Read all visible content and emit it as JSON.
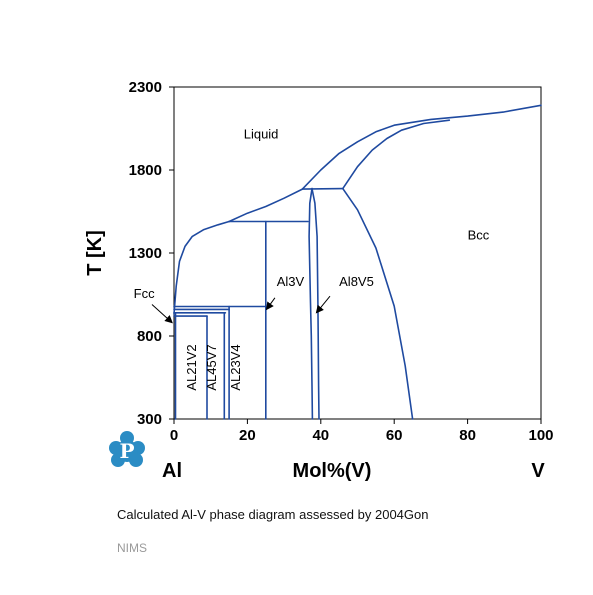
{
  "chart_data": {
    "type": "line",
    "title": "",
    "xlabel": "Mol%(V)",
    "ylabel": "T [K]",
    "x_left_label": "Al",
    "x_right_label": "V",
    "xlim": [
      0,
      100
    ],
    "ylim": [
      300,
      2300
    ],
    "xticks": [
      "0",
      "20",
      "40",
      "60",
      "80",
      "100"
    ],
    "yticks": [
      "300",
      "800",
      "1300",
      "1800",
      "2300"
    ],
    "line_color": "#1f4aa0",
    "grid": false,
    "series": [
      {
        "points": [
          [
            0,
            933
          ],
          [
            0.6,
            1100
          ],
          [
            1.5,
            1250
          ],
          [
            3,
            1340
          ],
          [
            5,
            1400
          ],
          [
            8,
            1440
          ],
          [
            12,
            1470
          ],
          [
            15,
            1490
          ]
        ]
      },
      {
        "points": [
          [
            15,
            1490
          ],
          [
            20,
            1540
          ],
          [
            25,
            1580
          ],
          [
            30,
            1630
          ],
          [
            35,
            1685
          ]
        ]
      },
      {
        "points": [
          [
            35,
            1685
          ],
          [
            40,
            1800
          ],
          [
            45,
            1900
          ],
          [
            50,
            1970
          ],
          [
            55,
            2030
          ],
          [
            60,
            2070
          ],
          [
            70,
            2105
          ],
          [
            80,
            2125
          ],
          [
            90,
            2150
          ],
          [
            100,
            2190
          ]
        ]
      },
      {
        "points": [
          [
            46,
            1688
          ],
          [
            50,
            1820
          ],
          [
            54,
            1920
          ],
          [
            58,
            1990
          ],
          [
            62,
            2040
          ],
          [
            68,
            2080
          ],
          [
            75,
            2100
          ]
        ]
      },
      {
        "points": [
          [
            46,
            1688
          ],
          [
            50,
            1560
          ],
          [
            55,
            1330
          ],
          [
            60,
            980
          ],
          [
            63,
            620
          ],
          [
            65,
            300
          ]
        ]
      },
      {
        "points": [
          [
            35,
            1685
          ],
          [
            46,
            1688
          ]
        ]
      },
      {
        "points": [
          [
            15,
            1490
          ],
          [
            36.5,
            1490
          ]
        ]
      },
      {
        "points": [
          [
            37.6,
            1688
          ],
          [
            37,
            1600
          ],
          [
            36.8,
            1400
          ],
          [
            37,
            1200
          ],
          [
            37.2,
            1000
          ],
          [
            37.4,
            800
          ],
          [
            37.6,
            500
          ],
          [
            37.7,
            300
          ]
        ]
      },
      {
        "points": [
          [
            37.6,
            1688
          ],
          [
            38.4,
            1600
          ],
          [
            39,
            1400
          ],
          [
            39.1,
            1200
          ],
          [
            39.2,
            1000
          ],
          [
            39.3,
            800
          ],
          [
            39.4,
            500
          ],
          [
            39.5,
            300
          ]
        ]
      },
      {
        "points": [
          [
            0,
            978
          ],
          [
            25,
            978
          ]
        ]
      },
      {
        "points": [
          [
            0,
            960
          ],
          [
            15,
            960
          ]
        ]
      },
      {
        "points": [
          [
            0,
            940
          ],
          [
            14,
            940
          ]
        ]
      },
      {
        "points": [
          [
            0,
            920
          ],
          [
            9,
            920
          ]
        ]
      },
      {
        "points": [
          [
            9,
            920
          ],
          [
            9,
            300
          ]
        ]
      },
      {
        "points": [
          [
            13.7,
            940
          ],
          [
            13.7,
            300
          ]
        ]
      },
      {
        "points": [
          [
            15,
            978
          ],
          [
            15,
            300
          ]
        ]
      },
      {
        "points": [
          [
            25,
            1490
          ],
          [
            25,
            300
          ]
        ]
      },
      {
        "points": [
          [
            0.4,
            933
          ],
          [
            0.4,
            300
          ]
        ]
      }
    ],
    "phase_labels": [
      {
        "text": "Liquid",
        "x": 19,
        "y": 1990
      },
      {
        "text": "Bcc",
        "x": 80,
        "y": 1380
      },
      {
        "text": "Fcc",
        "x": -11,
        "y": 1030
      },
      {
        "text": "Al3V",
        "x": 28,
        "y": 1100
      },
      {
        "text": "Al8V5",
        "x": 45,
        "y": 1100
      }
    ],
    "vertical_labels": [
      {
        "text": "AL21V2",
        "x": 6,
        "y": 610
      },
      {
        "text": "AL45V7",
        "x": 11.5,
        "y": 610
      },
      {
        "text": "AL23V4",
        "x": 18,
        "y": 610
      }
    ],
    "arrows": [
      {
        "from": [
          -6,
          990
        ],
        "to": [
          -0.5,
          880
        ]
      },
      {
        "from": [
          27.5,
          1030
        ],
        "to": [
          25.2,
          960
        ]
      },
      {
        "from": [
          42.5,
          1040
        ],
        "to": [
          38.8,
          940
        ]
      }
    ]
  },
  "caption": {
    "text": "Calculated Al-V phase diagram assessed by ",
    "source": "2004Gon"
  },
  "footer": {
    "org": "NIMS"
  },
  "logo": {
    "letter": "P",
    "color": "#2b8cc4"
  }
}
